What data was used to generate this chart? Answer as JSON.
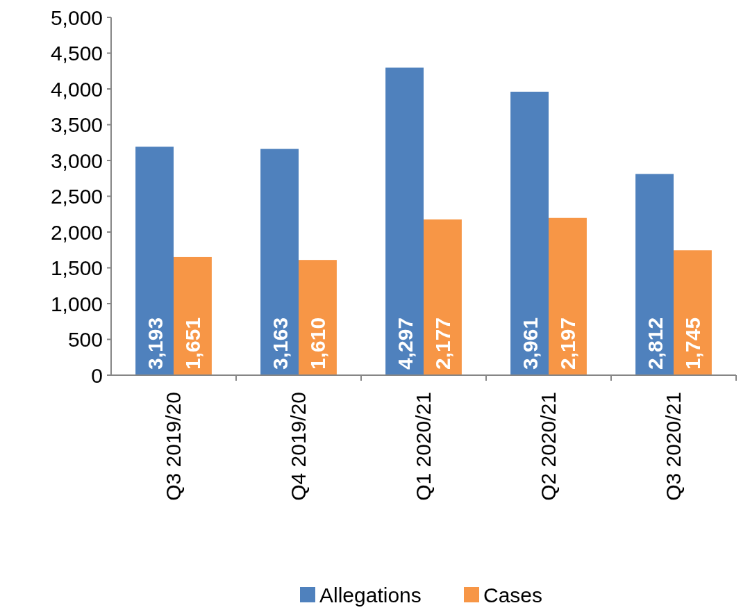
{
  "chart_data": {
    "type": "bar",
    "categories": [
      "Q3 2019/20",
      "Q4 2019/20",
      "Q1 2020/21",
      "Q2 2020/21",
      "Q3 2020/21"
    ],
    "series": [
      {
        "name": "Allegations",
        "color": "#4f81bd",
        "values": [
          3193,
          3163,
          4297,
          3961,
          2812
        ],
        "value_labels": [
          "3,193",
          "3,163",
          "4,297",
          "3,961",
          "2,812"
        ]
      },
      {
        "name": "Cases",
        "color": "#f79646",
        "values": [
          1651,
          1610,
          2177,
          2197,
          1745
        ],
        "value_labels": [
          "1,651",
          "1,610",
          "2,177",
          "2,197",
          "1,745"
        ]
      }
    ],
    "ylim": [
      0,
      5000
    ],
    "yticks": [
      0,
      500,
      {
        "value": 1000,
        "label": "1,000"
      },
      {
        "value": 1500,
        "label": "1,500"
      },
      {
        "value": 2000,
        "label": "2,000"
      },
      {
        "value": 2500,
        "label": "2,500"
      },
      {
        "value": 3000,
        "label": "3,000"
      },
      {
        "value": 3500,
        "label": "3,500"
      },
      {
        "value": 4000,
        "label": "4,000"
      },
      {
        "value": 4500,
        "label": "4,500"
      },
      {
        "value": 5000,
        "label": "5,000"
      }
    ],
    "legend": "bottom"
  }
}
